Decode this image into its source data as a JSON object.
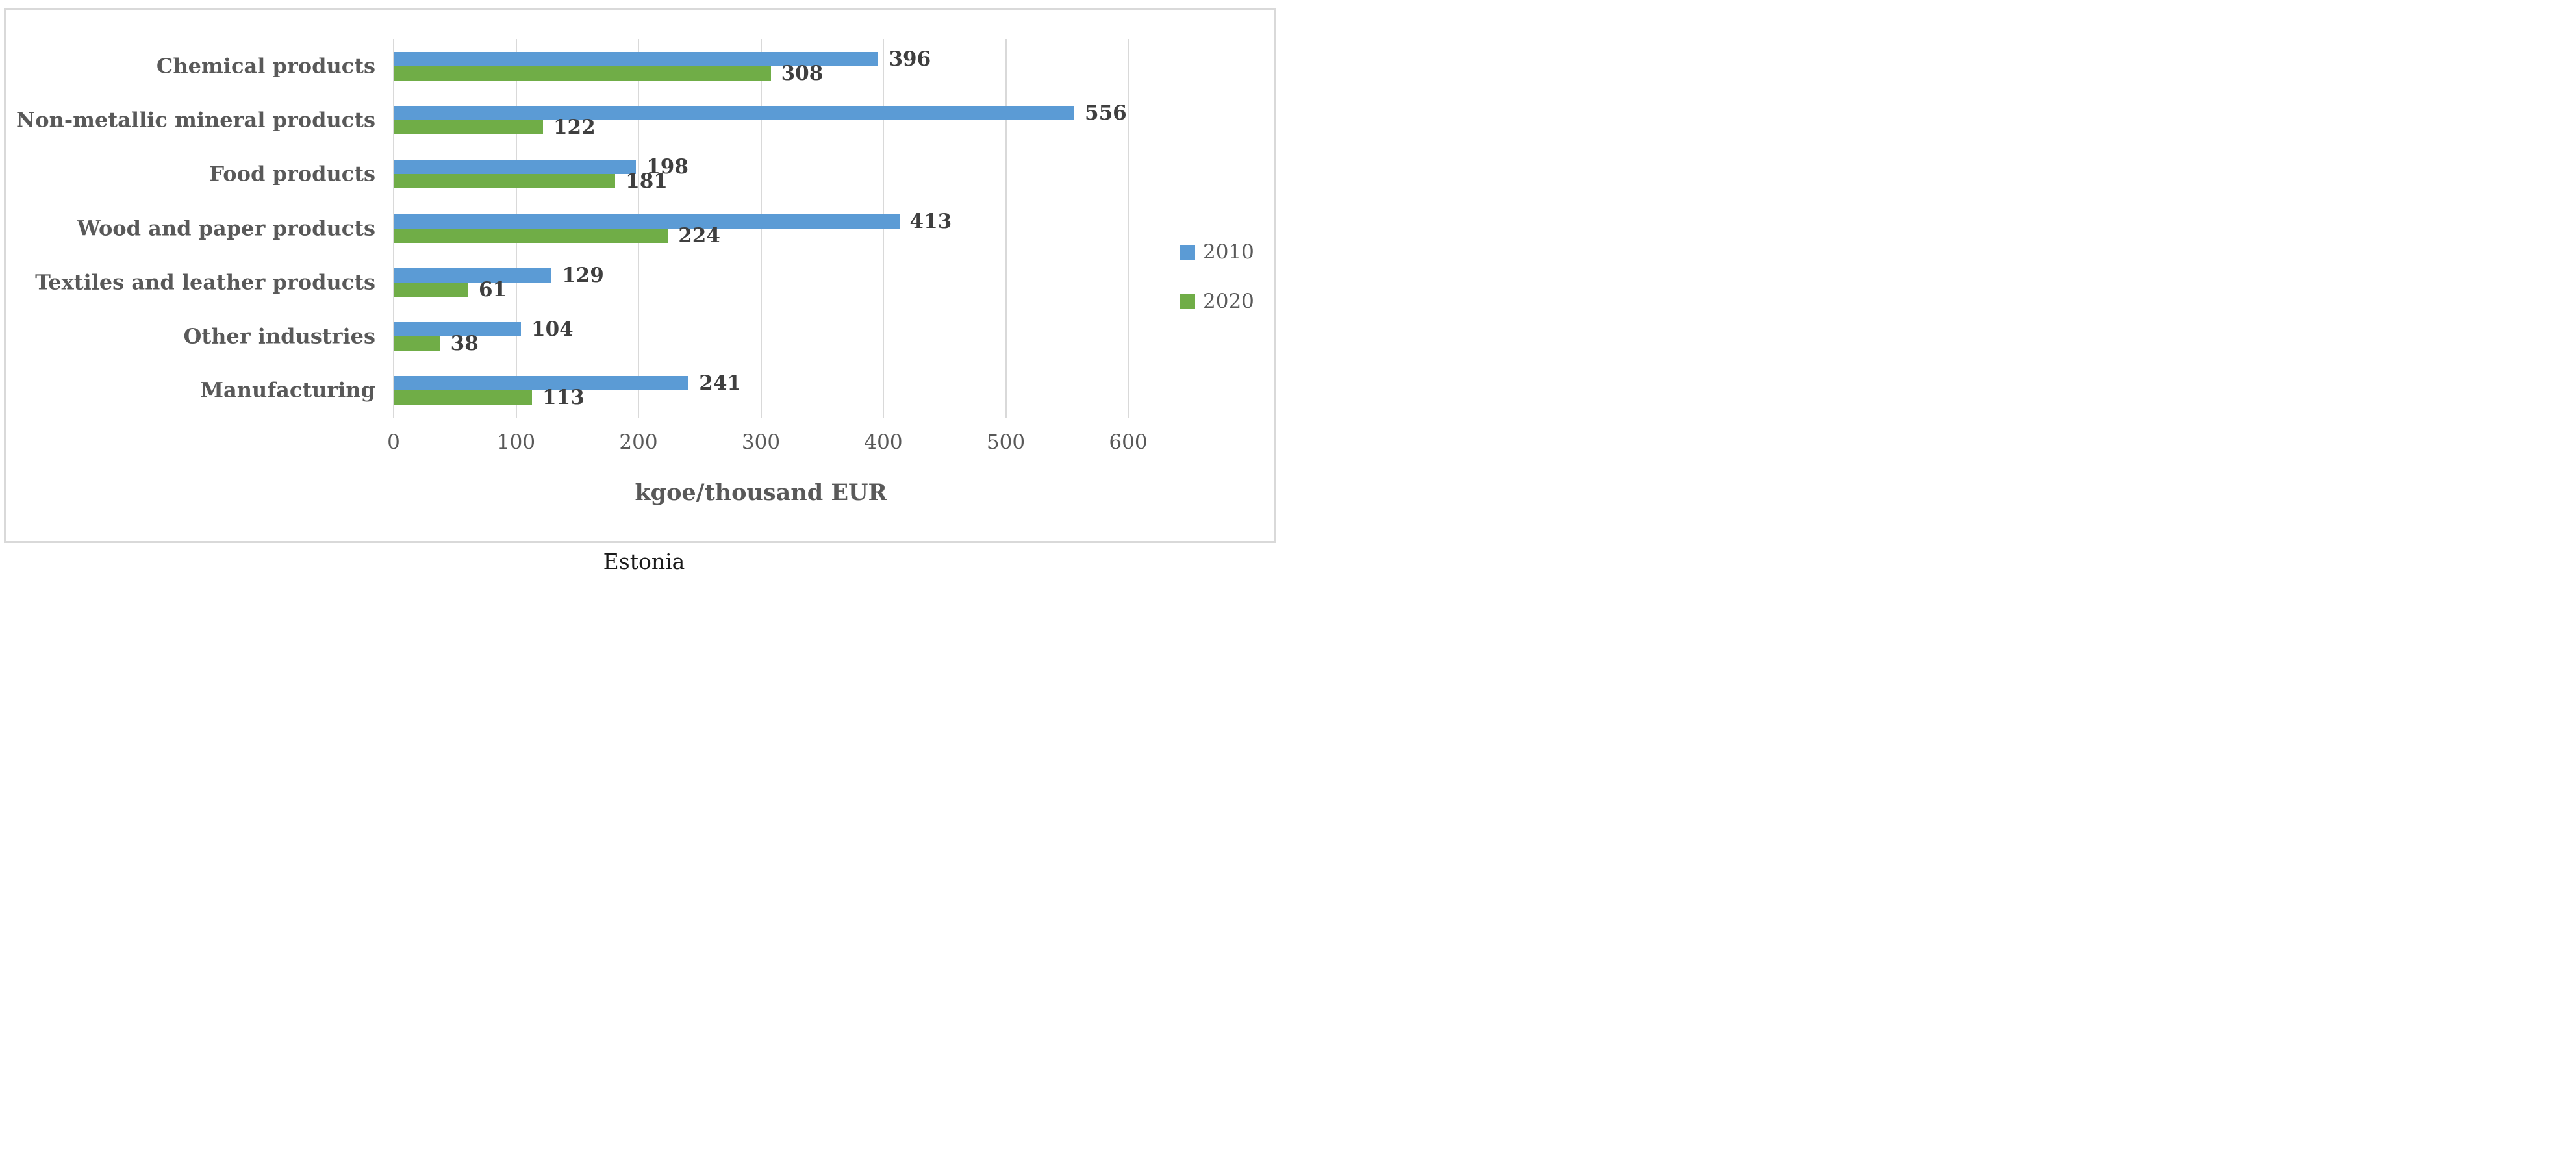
{
  "figure": {
    "caption": "Estonia"
  },
  "chart_data": {
    "type": "bar",
    "orientation": "horizontal",
    "categories": [
      "Chemical products",
      "Non-metallic mineral products",
      "Food products",
      "Wood and paper products",
      "Textiles and leather products",
      "Other industries",
      "Manufacturing"
    ],
    "series": [
      {
        "name": "2010",
        "color": "#5B9BD5",
        "values": [
          396,
          556,
          198,
          413,
          129,
          104,
          241
        ]
      },
      {
        "name": "2020",
        "color": "#70AD47",
        "values": [
          308,
          122,
          181,
          224,
          61,
          38,
          113
        ]
      }
    ],
    "xlabel": "kgoe/thousand EUR",
    "x_ticks": [
      0,
      100,
      200,
      300,
      400,
      500,
      600
    ],
    "xlim": [
      0,
      600
    ],
    "grid": true,
    "legend_position": "right",
    "data_labels": true,
    "colors": {
      "gridline": "#D9D9D9",
      "border": "#D9D9D9",
      "category_text": "#595959",
      "tick_text": "#595959",
      "data_label_text": "#3F3F3F",
      "caption_text": "#1a1a1a"
    }
  }
}
